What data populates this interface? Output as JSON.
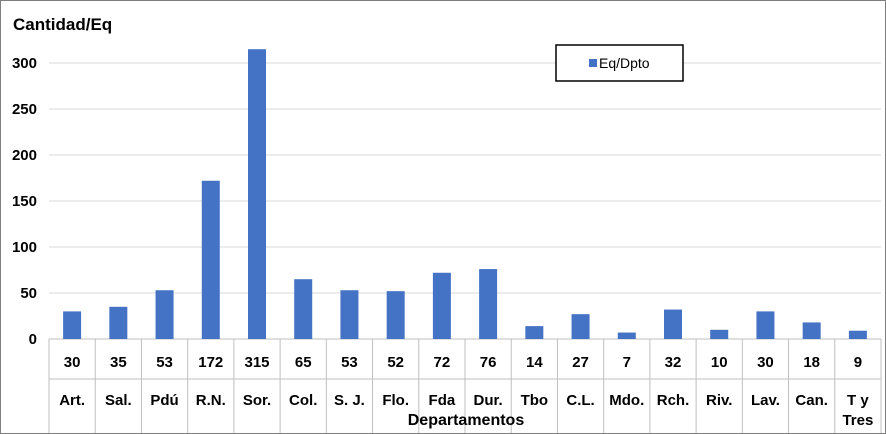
{
  "chart_data": {
    "type": "bar",
    "ylabel": "Cantidad/Eq",
    "xlabel": "Departamentos",
    "ylim": [
      0,
      300
    ],
    "yticks": [
      0,
      50,
      100,
      150,
      200,
      250,
      300
    ],
    "grid": "horizontal",
    "legend": "top-right",
    "color": "#4472C4",
    "categories": [
      "Art.",
      "Sal.",
      "Pdú",
      "R.N.",
      "Sor.",
      "Col.",
      "S. J.",
      "Flo.",
      "Fda",
      "Dur.",
      "Tbo",
      "C.L.",
      "Mdo.",
      "Rch.",
      "Riv.",
      "Lav.",
      "Can.",
      "T y Tres"
    ],
    "series": [
      {
        "name": "Eq/Dpto",
        "values": [
          30,
          35,
          53,
          172,
          315,
          65,
          53,
          52,
          72,
          76,
          14,
          27,
          7,
          32,
          10,
          30,
          18,
          9
        ]
      }
    ]
  }
}
